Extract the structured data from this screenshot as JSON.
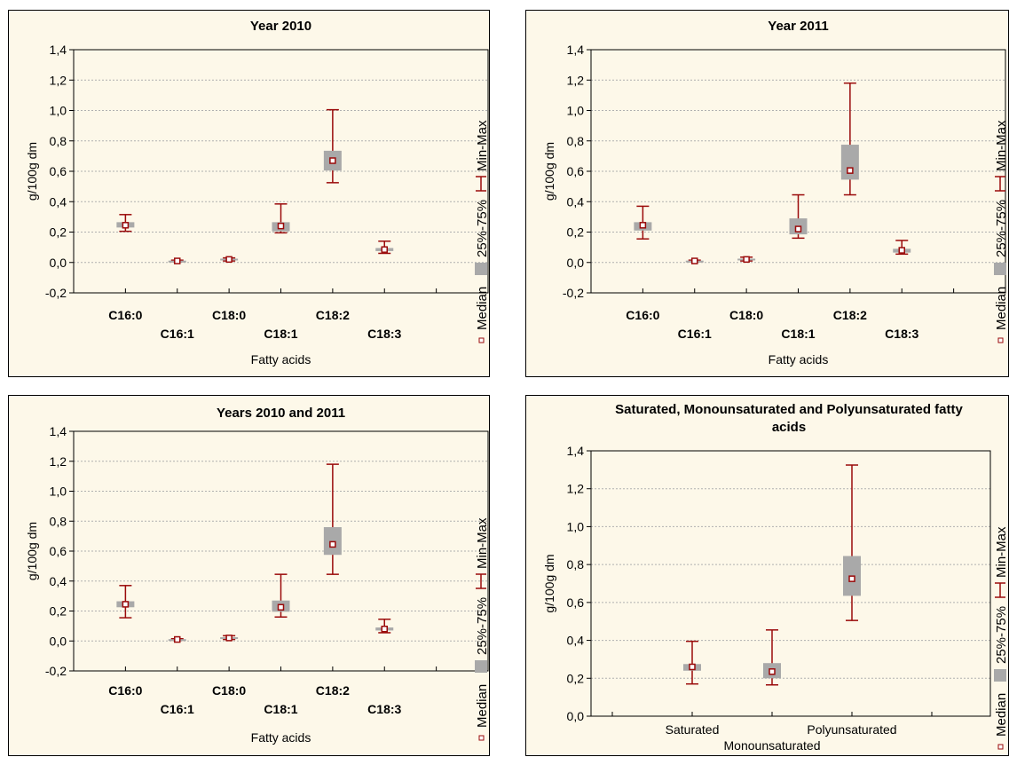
{
  "chart_data": [
    {
      "type": "boxplot",
      "title": "Year 2010",
      "xlabel": "Fatty acids",
      "ylabel": "g/100g dm",
      "ylim": [
        -0.2,
        1.4
      ],
      "yticks": [
        "-0,2",
        "0,0",
        "0,2",
        "0,4",
        "0,6",
        "0,8",
        "1,0",
        "1,2",
        "1,4"
      ],
      "ytick_values": [
        -0.2,
        0,
        0.2,
        0.4,
        0.6,
        0.8,
        1.0,
        1.2,
        1.4
      ],
      "category_label_style": "bold",
      "categories": [
        "C16:0",
        "C16:1",
        "C18:0",
        "C18:1",
        "C18:2",
        "C18:3"
      ],
      "boxes": [
        {
          "median": 0.245,
          "q1": 0.23,
          "q3": 0.265,
          "min": 0.205,
          "max": 0.315
        },
        {
          "median": 0.01,
          "q1": 0.005,
          "q3": 0.012,
          "min": 0.005,
          "max": 0.015
        },
        {
          "median": 0.02,
          "q1": 0.015,
          "q3": 0.025,
          "min": 0.01,
          "max": 0.03
        },
        {
          "median": 0.24,
          "q1": 0.205,
          "q3": 0.265,
          "min": 0.195,
          "max": 0.385
        },
        {
          "median": 0.67,
          "q1": 0.605,
          "q3": 0.735,
          "min": 0.525,
          "max": 1.005
        },
        {
          "median": 0.085,
          "q1": 0.075,
          "q3": 0.095,
          "min": 0.06,
          "max": 0.14
        }
      ],
      "grid": true
    },
    {
      "type": "boxplot",
      "title": "Year 2011",
      "xlabel": "Fatty acids",
      "ylabel": "g/100g dm",
      "ylim": [
        -0.2,
        1.4
      ],
      "yticks": [
        "-0,2",
        "0,0",
        "0,2",
        "0,4",
        "0,6",
        "0,8",
        "1,0",
        "1,2",
        "1,4"
      ],
      "ytick_values": [
        -0.2,
        0,
        0.2,
        0.4,
        0.6,
        0.8,
        1.0,
        1.2,
        1.4
      ],
      "category_label_style": "bold",
      "categories": [
        "C16:0",
        "C16:1",
        "C18:0",
        "C18:1",
        "C18:2",
        "C18:3"
      ],
      "boxes": [
        {
          "median": 0.245,
          "q1": 0.21,
          "q3": 0.265,
          "min": 0.155,
          "max": 0.37
        },
        {
          "median": 0.01,
          "q1": 0.005,
          "q3": 0.012,
          "min": 0.005,
          "max": 0.015
        },
        {
          "median": 0.02,
          "q1": 0.015,
          "q3": 0.025,
          "min": 0.01,
          "max": 0.035
        },
        {
          "median": 0.22,
          "q1": 0.185,
          "q3": 0.29,
          "min": 0.16,
          "max": 0.445
        },
        {
          "median": 0.605,
          "q1": 0.545,
          "q3": 0.775,
          "min": 0.445,
          "max": 1.18
        },
        {
          "median": 0.08,
          "q1": 0.065,
          "q3": 0.09,
          "min": 0.055,
          "max": 0.145
        }
      ],
      "grid": true
    },
    {
      "type": "boxplot",
      "title": "Years 2010 and 2011",
      "xlabel": "Fatty acids",
      "ylabel": "g/100g dm",
      "ylim": [
        -0.2,
        1.4
      ],
      "yticks": [
        "-0,2",
        "0,0",
        "0,2",
        "0,4",
        "0,6",
        "0,8",
        "1,0",
        "1,2",
        "1,4"
      ],
      "ytick_values": [
        -0.2,
        0,
        0.2,
        0.4,
        0.6,
        0.8,
        1.0,
        1.2,
        1.4
      ],
      "category_label_style": "bold",
      "categories": [
        "C16:0",
        "C16:1",
        "C18:0",
        "C18:1",
        "C18:2",
        "C18:3"
      ],
      "boxes": [
        {
          "median": 0.245,
          "q1": 0.225,
          "q3": 0.265,
          "min": 0.155,
          "max": 0.37
        },
        {
          "median": 0.01,
          "q1": 0.005,
          "q3": 0.012,
          "min": 0.005,
          "max": 0.015
        },
        {
          "median": 0.02,
          "q1": 0.015,
          "q3": 0.025,
          "min": 0.01,
          "max": 0.035
        },
        {
          "median": 0.225,
          "q1": 0.195,
          "q3": 0.27,
          "min": 0.16,
          "max": 0.445
        },
        {
          "median": 0.645,
          "q1": 0.575,
          "q3": 0.76,
          "min": 0.445,
          "max": 1.18
        },
        {
          "median": 0.08,
          "q1": 0.07,
          "q3": 0.09,
          "min": 0.055,
          "max": 0.145
        }
      ],
      "grid": true
    },
    {
      "type": "boxplot",
      "title": "Saturated, Monounsaturated and Polyunsaturated fatty acids",
      "title_lines": [
        "Saturated, Monounsaturated and Polyunsaturated fatty",
        "acids"
      ],
      "xlabel": "",
      "ylabel": "g/100g dm",
      "ylim": [
        0.0,
        1.4
      ],
      "yticks": [
        "0,0",
        "0,2",
        "0,4",
        "0,6",
        "0,8",
        "1,0",
        "1,2",
        "1,4"
      ],
      "ytick_values": [
        0,
        0.2,
        0.4,
        0.6,
        0.8,
        1.0,
        1.2,
        1.4
      ],
      "category_label_style": "normal",
      "categories": [
        "Saturated",
        "Monounsaturated",
        "Polyunsaturated"
      ],
      "boxes": [
        {
          "median": 0.26,
          "q1": 0.24,
          "q3": 0.275,
          "min": 0.17,
          "max": 0.395
        },
        {
          "median": 0.235,
          "q1": 0.2,
          "q3": 0.28,
          "min": 0.165,
          "max": 0.455
        },
        {
          "median": 0.725,
          "q1": 0.635,
          "q3": 0.845,
          "min": 0.505,
          "max": 1.325
        }
      ],
      "grid": true
    }
  ],
  "legend": {
    "items": [
      "Median",
      "25%-75%",
      "Min-Max"
    ],
    "placement": "right, vertical"
  },
  "colors": {
    "panel_bg": "#fdf8e9",
    "box_fill": "#a9a9a9",
    "whisker": "#9a0a0a",
    "median_marker": "#9a0a0a",
    "grid": "#b0b0b0"
  }
}
